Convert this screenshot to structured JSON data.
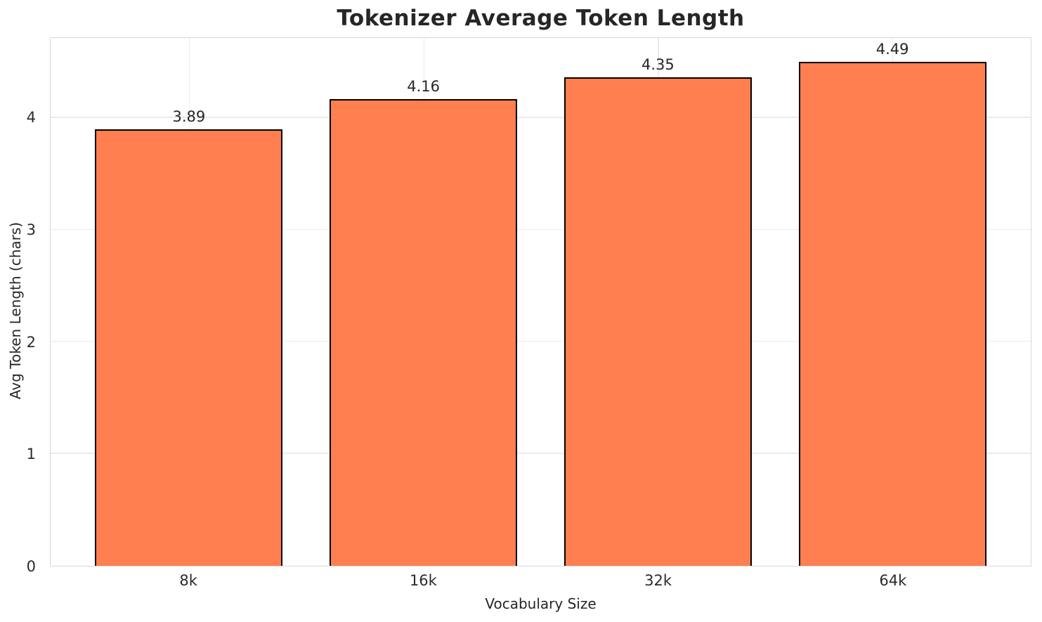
{
  "chart_data": {
    "type": "bar",
    "title": "Tokenizer Average Token Length",
    "xlabel": "Vocabulary Size",
    "ylabel": "Avg Token Length (chars)",
    "categories": [
      "8k",
      "16k",
      "32k",
      "64k"
    ],
    "values": [
      3.89,
      4.16,
      4.35,
      4.49
    ],
    "bar_value_labels": [
      "3.89",
      "4.16",
      "4.35",
      "4.49"
    ],
    "yticks": [
      0,
      1,
      2,
      3,
      4
    ],
    "ylim": [
      0,
      4.7145
    ],
    "bar_width_fraction": 0.8,
    "grid": true,
    "legend": "none",
    "colors": {
      "bar_fill": "#FF7F50",
      "bar_edge": "#000000",
      "grid_line": "#EBEBEB",
      "spine": "#D8D8D8",
      "text": "#262626",
      "background": "#FFFFFF"
    }
  }
}
